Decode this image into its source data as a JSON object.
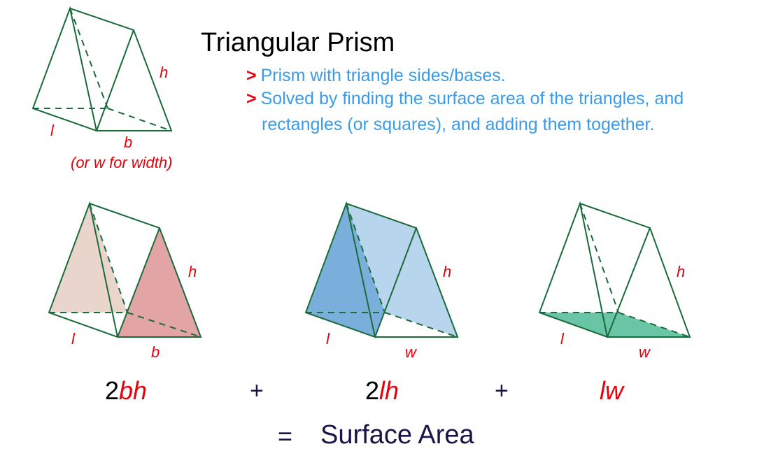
{
  "title": "Triangular Prism",
  "bullets": {
    "marker": ">",
    "items": [
      "Prism with triangle sides/bases.",
      "Solved by finding the surface area of the triangles, and",
      "rectangles (or squares), and adding them together."
    ]
  },
  "top_prism": {
    "labels": {
      "h": "h",
      "l": "l",
      "b": "b",
      "note": "(or w for width)"
    }
  },
  "prisms": [
    {
      "labels": {
        "h": "h",
        "l": "l",
        "base": "b"
      },
      "highlight": "triangular bases",
      "colors": [
        "#ead5cd",
        "#e2a4a4"
      ]
    },
    {
      "labels": {
        "h": "h",
        "l": "l",
        "base": "w"
      },
      "highlight": "rectangular sides",
      "colors": [
        "#7aafdc",
        "#b8d5ee"
      ]
    },
    {
      "labels": {
        "h": "h",
        "l": "l",
        "base": "w"
      },
      "highlight": "rectangular bottom",
      "colors": [
        "#6ac4a6"
      ]
    }
  ],
  "formula": {
    "term1": {
      "coef": "2",
      "var": "bh"
    },
    "plus1": "+",
    "term2": {
      "coef": "2",
      "var": "lh"
    },
    "plus2": "+",
    "term3": {
      "coef": "",
      "var": "lw"
    },
    "equals": "=",
    "result": "Surface Area"
  },
  "colors": {
    "edge": "#1a6b3a",
    "label": "#e8000b",
    "bullet_text": "#3a9be6",
    "dark_text": "#1c1446"
  }
}
